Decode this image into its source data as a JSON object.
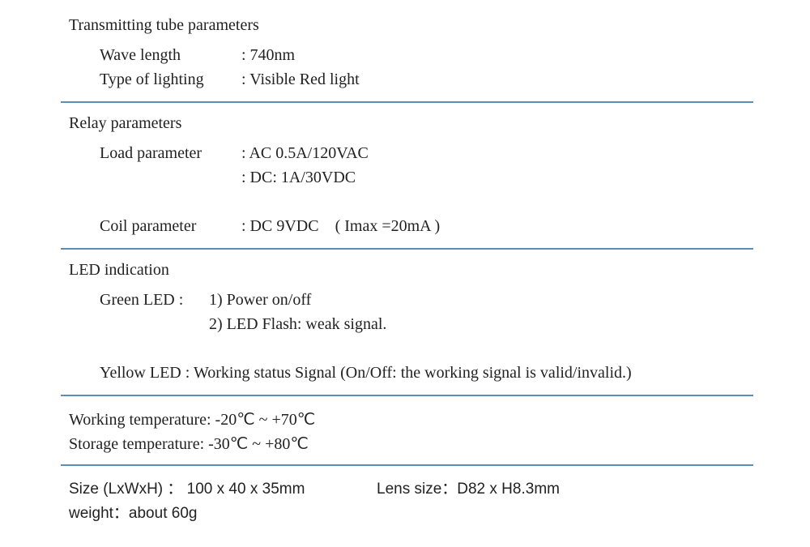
{
  "colors": {
    "divider": "#5b8db8",
    "text": "#222222",
    "background": "#ffffff"
  },
  "typography": {
    "mainFont": "Times New Roman, serif",
    "bottomFont": "Arial, sans-serif",
    "mainSize": 20,
    "bottomSize": 19
  },
  "sections": {
    "transmitting": {
      "title": "Transmitting tube parameters",
      "waveLength": {
        "label": "Wave length",
        "value": ": 740nm"
      },
      "typeOfLighting": {
        "label": "Type of lighting",
        "value": ": Visible Red light"
      }
    },
    "relay": {
      "title": "Relay parameters",
      "loadParameter": {
        "label": "Load parameter",
        "value1": ": AC 0.5A/120VAC",
        "value2": ": DC: 1A/30VDC"
      },
      "coilParameter": {
        "label": "Coil parameter",
        "value": ": DC 9VDC    ( Imax =20mA )"
      }
    },
    "led": {
      "title": "LED indication",
      "greenLabel": "Green LED :",
      "green1": "1) Power on/off",
      "green2": "2) LED Flash: weak signal.",
      "yellow": "Yellow LED : Working status Signal (On/Off: the working signal is valid/invalid.)"
    },
    "temperature": {
      "working": "Working temperature: -20℃ ~ +70℃",
      "storage": "Storage temperature: -30℃ ~ +80℃"
    },
    "physical": {
      "size": "Size (LxWxH)  ： 100 x 40 x 35mm",
      "lens": "Lens size：D82 x H8.3mm",
      "weight": "weight：about 60g"
    }
  }
}
